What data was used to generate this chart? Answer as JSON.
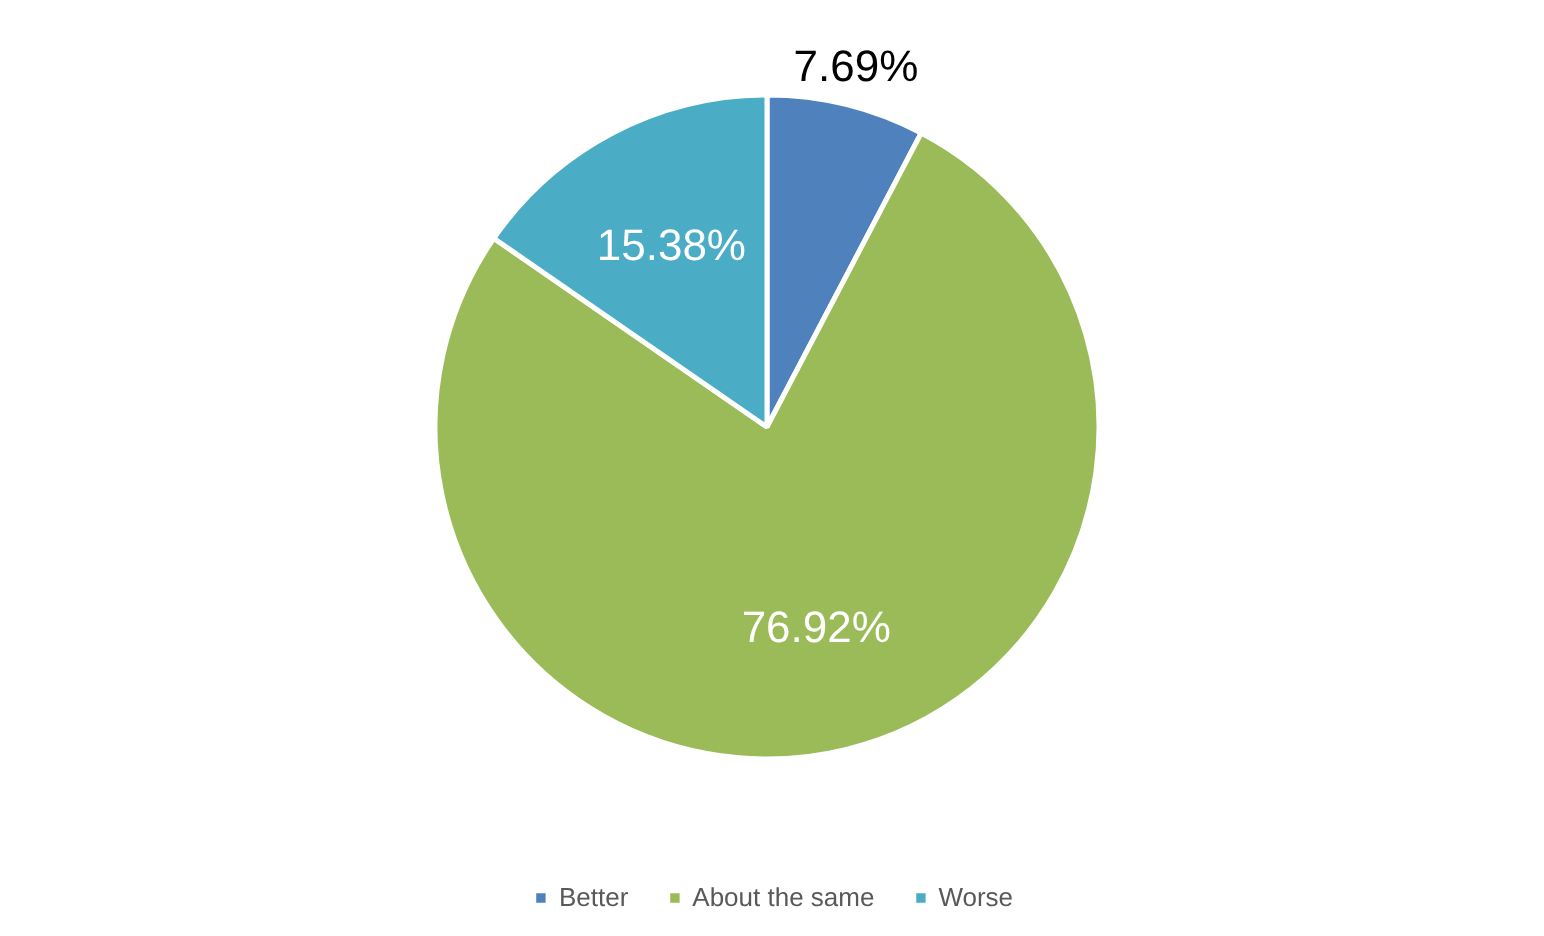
{
  "chart_data": {
    "type": "pie",
    "categories": [
      "Better",
      "About the same",
      "Worse"
    ],
    "values": [
      7.69,
      76.92,
      15.38
    ],
    "colors": [
      "#4f81bd",
      "#9bbb59",
      "#4bacc6"
    ],
    "value_labels": [
      "7.69%",
      "76.92%",
      "15.38%"
    ],
    "legend": "bottom"
  }
}
